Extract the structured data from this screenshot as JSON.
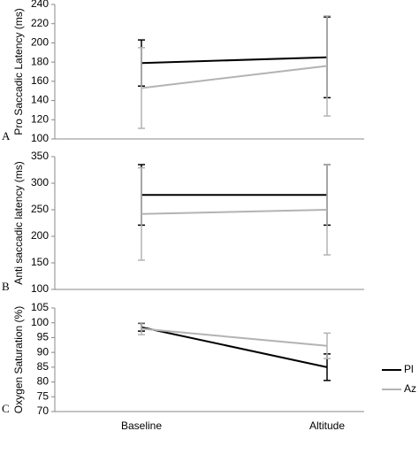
{
  "chart_data": [
    {
      "type": "line",
      "label": "A",
      "ylabel": "Pro Saccadic Latency (ms)",
      "ylim": [
        100,
        240
      ],
      "yticks": [
        100,
        120,
        140,
        160,
        180,
        200,
        220,
        240
      ],
      "series": [
        {
          "color": "#000000",
          "values": [
            179,
            185
          ],
          "errors": [
            24,
            42
          ]
        },
        {
          "color": "#b3b3b3",
          "values": [
            153,
            176
          ],
          "errors": [
            42,
            52
          ]
        }
      ]
    },
    {
      "type": "line",
      "label": "B",
      "ylabel": "Anti saccadic latency (ms)",
      "ylim": [
        100,
        350
      ],
      "yticks": [
        100,
        150,
        200,
        250,
        300,
        350
      ],
      "series": [
        {
          "color": "#000000",
          "values": [
            278,
            278
          ],
          "errors": [
            57,
            57
          ]
        },
        {
          "color": "#b3b3b3",
          "values": [
            242,
            250
          ],
          "errors": [
            87,
            85
          ]
        }
      ]
    },
    {
      "type": "line",
      "label": "C",
      "ylabel": "Oxygen Saturation (%)",
      "ylim": [
        70,
        105
      ],
      "yticks": [
        70,
        75,
        80,
        85,
        90,
        95,
        100,
        105
      ],
      "categories": [
        "Baseline",
        "Altitude"
      ],
      "series": [
        {
          "name": "Pl",
          "color": "#000000",
          "values": [
            98.5,
            85
          ],
          "errors": [
            1.3,
            4.5
          ]
        },
        {
          "name": "Az",
          "color": "#b3b3b3",
          "values": [
            98,
            92.2
          ],
          "errors": [
            2,
            4.3
          ]
        }
      ]
    }
  ]
}
